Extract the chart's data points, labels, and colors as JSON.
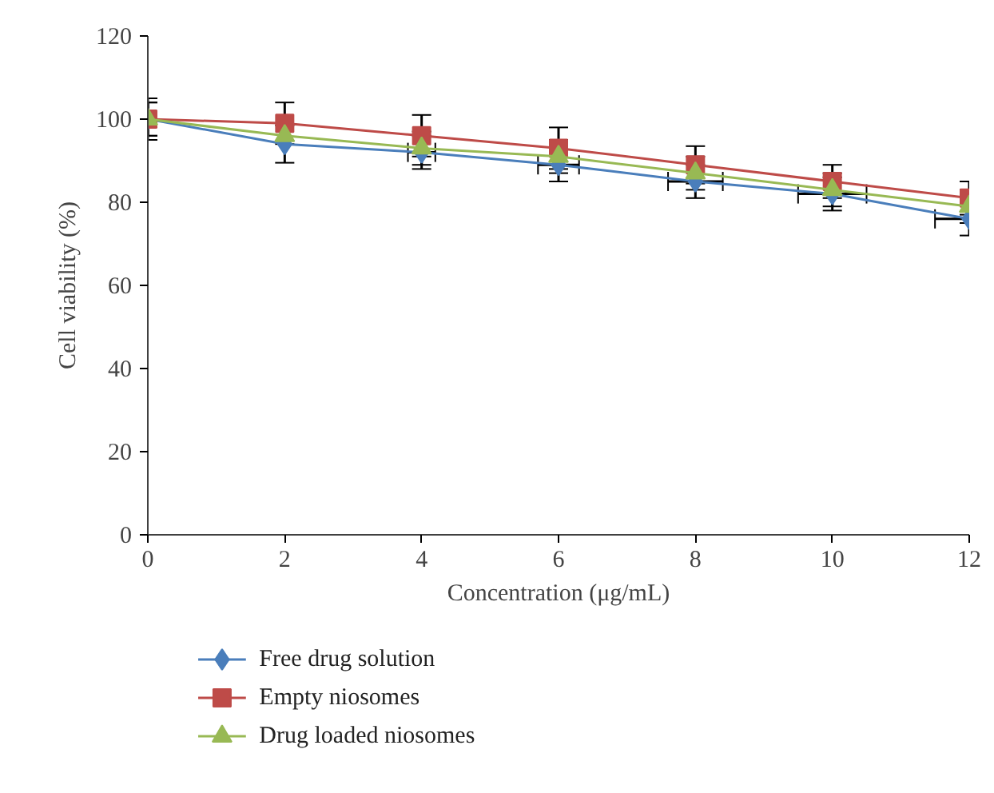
{
  "chart_data": {
    "type": "line",
    "xlabel": "Concentration (μg/mL)",
    "ylabel": "Cell viability (%)",
    "x": [
      0,
      2,
      4,
      6,
      8,
      10,
      12
    ],
    "xlim": [
      0,
      12
    ],
    "xticks": [
      0,
      2,
      4,
      6,
      8,
      10,
      12
    ],
    "ylim": [
      0,
      120
    ],
    "yticks": [
      0,
      20,
      40,
      60,
      80,
      100,
      120
    ],
    "grid": false,
    "legend": "bottom",
    "line_style": "solid",
    "series": [
      {
        "name": "Free drug solution",
        "color": "#4a7ebb",
        "marker": "diamond",
        "values": [
          100,
          94,
          92,
          89,
          85,
          82,
          76
        ],
        "errors": [
          4,
          4.5,
          4,
          4,
          4,
          4,
          4
        ],
        "xerrors": [
          null,
          null,
          0.2,
          0.3,
          0.4,
          0.5,
          0.5
        ]
      },
      {
        "name": "Empty niosomes",
        "color": "#be4b48",
        "marker": "square",
        "values": [
          100,
          99,
          96,
          93,
          89,
          85,
          81
        ],
        "errors": [
          5,
          5,
          5,
          5,
          4.5,
          4,
          4
        ]
      },
      {
        "name": "Drug loaded niosomes",
        "color": "#98b954",
        "marker": "triangle",
        "values": [
          100,
          96,
          93,
          91,
          87,
          83,
          79
        ],
        "errors": [
          4,
          null,
          4,
          4,
          4,
          4,
          4
        ]
      }
    ]
  }
}
